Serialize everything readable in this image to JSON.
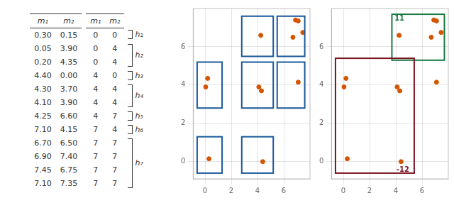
{
  "chart_data": [
    {
      "type": "table",
      "tables": [
        {
          "columns": [
            "m₁",
            "m₂"
          ],
          "rows": [
            [
              "0.30",
              "0.15"
            ],
            [
              "0.05",
              "3.90"
            ],
            [
              "0.20",
              "4.35"
            ],
            [
              "4.40",
              "0.00"
            ],
            [
              "4.30",
              "3.70"
            ],
            [
              "4.10",
              "3.90"
            ],
            [
              "4.25",
              "6.60"
            ],
            [
              "7.10",
              "4.15"
            ],
            [
              "6.70",
              "6.50"
            ],
            [
              "6.90",
              "7.40"
            ],
            [
              "7.45",
              "6.75"
            ],
            [
              "7.10",
              "7.35"
            ]
          ]
        },
        {
          "columns": [
            "m₁",
            "m₂"
          ],
          "rows": [
            [
              "0",
              "0"
            ],
            [
              "0",
              "4"
            ],
            [
              "0",
              "4"
            ],
            [
              "4",
              "0"
            ],
            [
              "4",
              "4"
            ],
            [
              "4",
              "4"
            ],
            [
              "4",
              "7"
            ],
            [
              "7",
              "4"
            ],
            [
              "7",
              "7"
            ],
            [
              "7",
              "7"
            ],
            [
              "7",
              "7"
            ],
            [
              "7",
              "7"
            ]
          ]
        }
      ],
      "groups": [
        {
          "label": "h₁",
          "rows": [
            0
          ]
        },
        {
          "label": "h₂",
          "rows": [
            1,
            2
          ]
        },
        {
          "label": "h₃",
          "rows": [
            3
          ]
        },
        {
          "label": "h₄",
          "rows": [
            4,
            5
          ]
        },
        {
          "label": "h₅",
          "rows": [
            6
          ]
        },
        {
          "label": "h₆",
          "rows": [
            7
          ]
        },
        {
          "label": "h₇",
          "rows": [
            8,
            9,
            10,
            11
          ]
        }
      ]
    },
    {
      "type": "scatter",
      "x": [
        0.3,
        0.05,
        0.2,
        4.4,
        4.3,
        4.1,
        4.25,
        7.1,
        6.7,
        6.9,
        7.45,
        7.1
      ],
      "values": [
        0.15,
        3.9,
        4.35,
        0.0,
        3.7,
        3.9,
        6.6,
        4.15,
        6.5,
        7.4,
        6.75,
        7.35
      ],
      "color": "#d45500",
      "xlim": [
        -0.9,
        8.0
      ],
      "ylim": [
        -0.9,
        8.0
      ],
      "xticks": [
        0,
        2,
        4,
        6
      ],
      "yticks": [
        0,
        2,
        4,
        6
      ],
      "grid": true,
      "boxes": [
        {
          "x": -0.6,
          "y": -0.6,
          "w": 1.9,
          "h": 1.9,
          "color": "#1a5a9a"
        },
        {
          "x": -0.6,
          "y": 2.8,
          "w": 1.9,
          "h": 2.4,
          "color": "#1a5a9a"
        },
        {
          "x": 2.8,
          "y": -0.6,
          "w": 2.4,
          "h": 1.9,
          "color": "#1a5a9a"
        },
        {
          "x": 2.8,
          "y": 2.8,
          "w": 2.4,
          "h": 2.4,
          "color": "#1a5a9a"
        },
        {
          "x": 2.8,
          "y": 5.5,
          "w": 2.4,
          "h": 2.1,
          "color": "#1a5a9a"
        },
        {
          "x": 5.5,
          "y": 2.8,
          "w": 2.1,
          "h": 2.4,
          "color": "#1a5a9a"
        },
        {
          "x": 5.5,
          "y": 5.5,
          "w": 2.1,
          "h": 2.1,
          "color": "#1a5a9a"
        }
      ]
    },
    {
      "type": "scatter",
      "x": [
        0.3,
        0.05,
        0.2,
        4.4,
        4.3,
        4.1,
        4.25,
        7.1,
        6.7,
        6.9,
        7.45,
        7.1
      ],
      "values": [
        0.15,
        3.9,
        4.35,
        0.0,
        3.7,
        3.9,
        6.6,
        4.15,
        6.5,
        7.4,
        6.75,
        7.35
      ],
      "color": "#d45500",
      "xlim": [
        -0.9,
        8.0
      ],
      "ylim": [
        -0.9,
        8.0
      ],
      "xticks": [
        0,
        2,
        4,
        6
      ],
      "yticks": [
        0,
        2,
        4,
        6
      ],
      "grid": true,
      "boxes": [
        {
          "x": 3.7,
          "y": 5.3,
          "w": 4.0,
          "h": 2.4,
          "color": "#1a7a40"
        },
        {
          "x": -0.6,
          "y": -0.6,
          "w": 6.0,
          "h": 6.0,
          "color": "#7a1020"
        }
      ],
      "annotations": [
        {
          "text": "11",
          "x": 3.9,
          "y": 7.45,
          "color": "#1a7a40"
        },
        {
          "text": "-12",
          "x": 4.05,
          "y": -0.45,
          "color": "#7a1020"
        }
      ]
    }
  ]
}
